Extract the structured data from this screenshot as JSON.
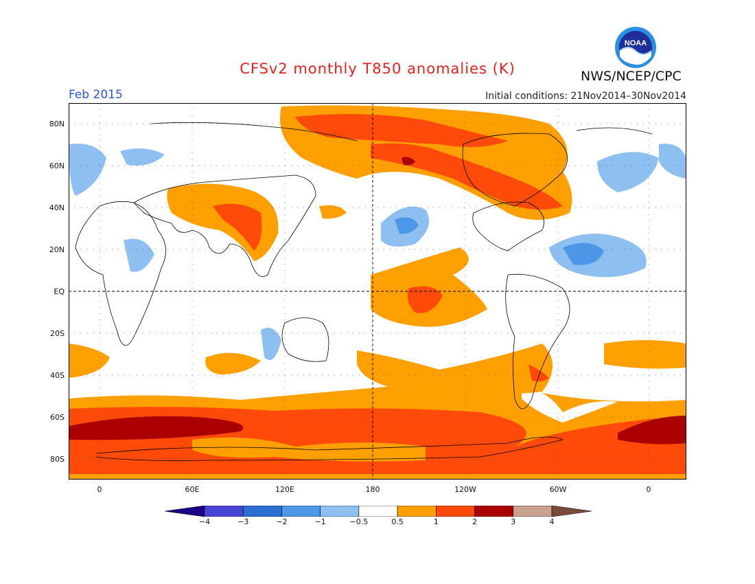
{
  "header": {
    "title": "CFSv2 monthly T850 anomalies (K)",
    "agency": "NWS/NCEP/CPC",
    "logo_text": "NOAA",
    "month": "Feb 2015",
    "initial_conditions": "Initial conditions: 21Nov2014–30Nov2014"
  },
  "axes": {
    "lat_labels": [
      "80N",
      "60N",
      "40N",
      "20N",
      "EQ",
      "20S",
      "40S",
      "60S",
      "80S"
    ],
    "lon_labels": [
      "0",
      "60E",
      "120E",
      "180",
      "120W",
      "60W",
      "0"
    ]
  },
  "colorbar": {
    "labels": [
      "−4",
      "−3",
      "−2",
      "−1",
      "−0.5",
      "0.5",
      "1",
      "2",
      "3",
      "4"
    ],
    "colors": [
      "#1e0088",
      "#4646d6",
      "#2b6fd0",
      "#4c97e8",
      "#8dbff0",
      "#ffffff",
      "#ff9f00",
      "#ff4a0a",
      "#aa0000",
      "#c9a08f",
      "#7a4a3a"
    ]
  }
}
